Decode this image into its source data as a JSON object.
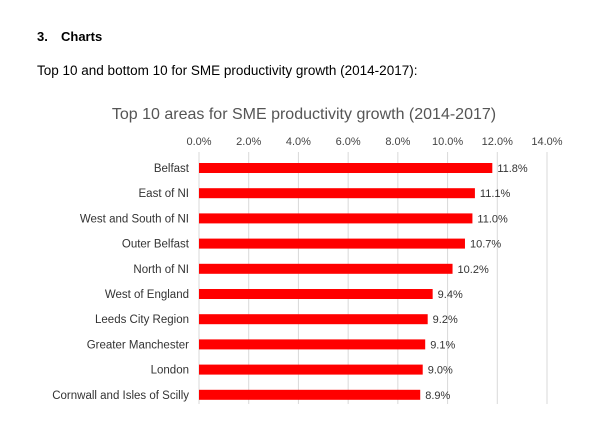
{
  "document": {
    "section_number": "3.",
    "section_title": "Charts",
    "subheading": "Top 10 and bottom 10 for SME productivity growth (2014-2017):"
  },
  "chart_data": {
    "type": "bar",
    "orientation": "horizontal",
    "title": "Top 10 areas for SME productivity growth (2014-2017)",
    "xlabel": "",
    "ylabel": "",
    "xlim": [
      0,
      14
    ],
    "ticks": [
      "0.0%",
      "2.0%",
      "4.0%",
      "6.0%",
      "8.0%",
      "10.0%",
      "12.0%",
      "14.0%"
    ],
    "tick_values": [
      0,
      2,
      4,
      6,
      8,
      10,
      12,
      14
    ],
    "axis_position": "top",
    "grid": true,
    "bar_color": "#ff0000",
    "categories": [
      "Belfast",
      "East of NI",
      "West and South of NI",
      "Outer Belfast",
      "North of NI",
      "West of England",
      "Leeds City Region",
      "Greater Manchester",
      "London",
      "Cornwall and Isles of Scilly"
    ],
    "values": [
      11.8,
      11.1,
      11.0,
      10.7,
      10.2,
      9.4,
      9.2,
      9.1,
      9.0,
      8.9
    ],
    "value_labels": [
      "11.8%",
      "11.1%",
      "11.0%",
      "10.7%",
      "10.2%",
      "9.4%",
      "9.2%",
      "9.1%",
      "9.0%",
      "8.9%"
    ]
  }
}
